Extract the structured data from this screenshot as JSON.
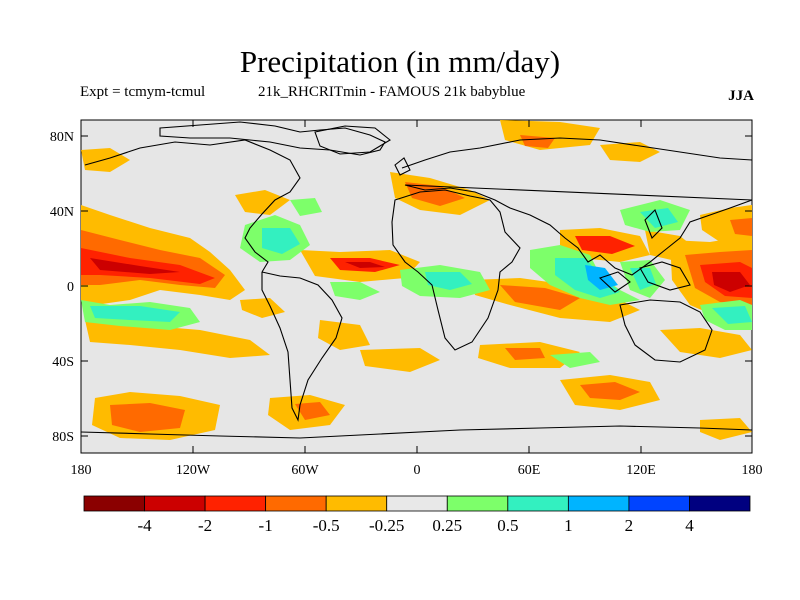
{
  "title": "Precipitation (in mm/day)",
  "experiment_label": "Expt = tcmym-tcmul",
  "run_label": "21k_RHCRITmin - FAMOUS 21k babyblue",
  "season": "JJA",
  "lat_ticks": [
    "80N",
    "40N",
    "0",
    "40S",
    "80S"
  ],
  "lon_ticks": [
    "180",
    "120W",
    "60W",
    "0",
    "60E",
    "120E",
    "180"
  ],
  "colorbar": {
    "colors": [
      "#8b0000",
      "#cc0000",
      "#ff2200",
      "#ff6a00",
      "#ffbb00",
      "#e8e8e8",
      "#7dff6a",
      "#33f0c0",
      "#00b4ff",
      "#0044ff",
      "#000080"
    ],
    "labels": [
      "-4",
      "-2",
      "-1",
      "-0.5",
      "-0.25",
      "0.25",
      "0.5",
      "1",
      "2",
      "4"
    ]
  }
}
